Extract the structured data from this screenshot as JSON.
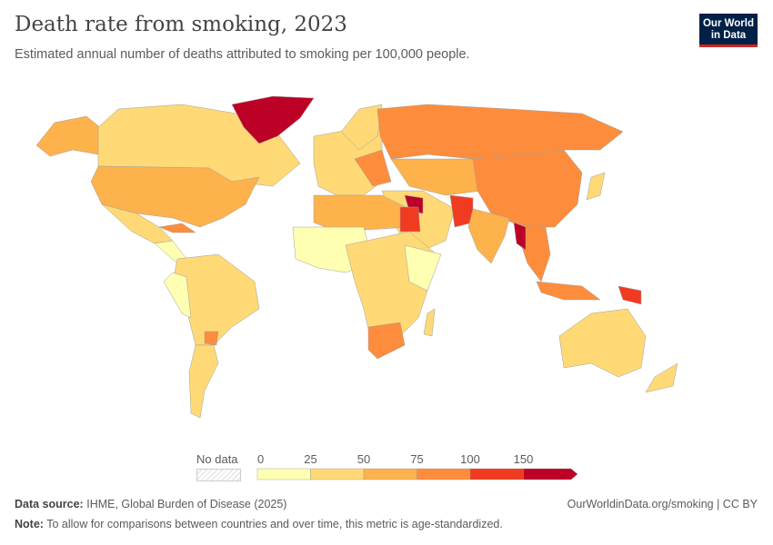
{
  "header": {
    "title": "Death rate from smoking, 2023",
    "subtitle": "Estimated annual number of deaths attributed to smoking per 100,000 people.",
    "logo": "Our World in Data"
  },
  "colors": {
    "b0": "#ffffb2",
    "b1": "#fed976",
    "b2": "#feb24c",
    "b3": "#fd8d3c",
    "b4": "#f03b20",
    "b5": "#bd0026",
    "border": "#a0a0a0"
  },
  "legend": {
    "no_data": "No data",
    "ticks": [
      "0",
      "25",
      "50",
      "75",
      "100",
      "150"
    ]
  },
  "footer": {
    "source_label": "Data source:",
    "source": "IHME, Global Burden of Disease (2025)",
    "url": "OurWorldinData.org/smoking | CC BY",
    "note_label": "Note:",
    "note": "To allow for comparisons between countries and over time, this metric is age-standardized."
  }
}
